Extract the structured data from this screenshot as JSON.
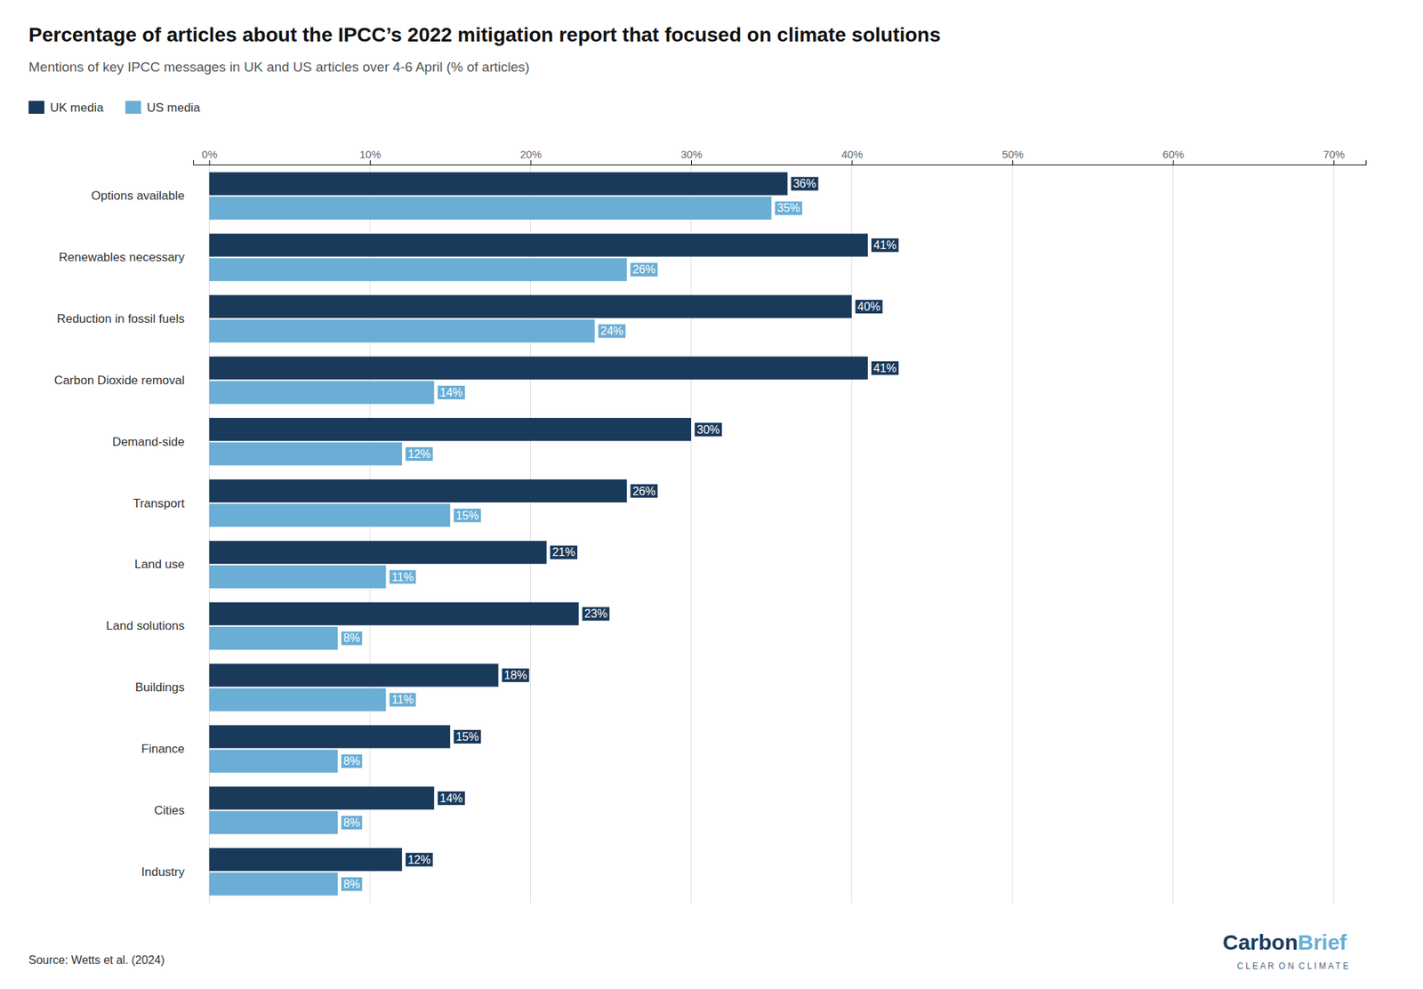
{
  "chart_data": {
    "type": "bar",
    "orientation": "horizontal",
    "title": "Percentage of articles about the IPCC’s 2022 mitigation report that focused on climate solutions",
    "subtitle": "Mentions of key IPCC messages in UK and US articles over 4-6 April (% of articles)",
    "source": "Source: Wetts et al. (2024)",
    "categories": [
      "Options available",
      "Renewables necessary",
      "Reduction in fossil fuels",
      "Carbon Dioxide removal",
      "Demand-side",
      "Transport",
      "Land use",
      "Land solutions",
      "Buildings",
      "Finance",
      "Cities",
      "Industry"
    ],
    "series": [
      {
        "name": "UK media",
        "color": "#1a3a5c",
        "values": [
          36,
          41,
          40,
          41,
          30,
          26,
          21,
          23,
          18,
          15,
          14,
          12
        ],
        "value_labels": [
          "36%",
          "41%",
          "40%",
          "41%",
          "30%",
          "26%",
          "21%",
          "23%",
          "18%",
          "15%",
          "14%",
          "12%"
        ]
      },
      {
        "name": "US media",
        "color": "#6aaed6",
        "values": [
          35,
          26,
          24,
          14,
          12,
          15,
          11,
          8,
          11,
          8,
          8,
          8
        ],
        "value_labels": [
          "35%",
          "26%",
          "24%",
          "14%",
          "12%",
          "15%",
          "11%",
          "8%",
          "11%",
          "8%",
          "8%",
          "8%"
        ]
      }
    ],
    "xlim": [
      -1,
      72
    ],
    "xticks": [
      {
        "value": 0,
        "label": "0%"
      },
      {
        "value": 10,
        "label": "10%"
      },
      {
        "value": 20,
        "label": "20%"
      },
      {
        "value": 30,
        "label": "30%"
      },
      {
        "value": 40,
        "label": "40%"
      },
      {
        "value": 50,
        "label": "50%"
      },
      {
        "value": 60,
        "label": "60%"
      },
      {
        "value": 70,
        "label": "70%"
      }
    ],
    "grid": true,
    "legend": "upper left",
    "data_labels": true,
    "annotations": [
      {
        "text": "Carbon",
        "color": "#1a3a5c"
      },
      {
        "text": "Brief",
        "color": "#6aaed6"
      },
      {
        "text": "C L E A R  O N  C L I M A T E",
        "color": "#1a3a5c"
      }
    ]
  }
}
